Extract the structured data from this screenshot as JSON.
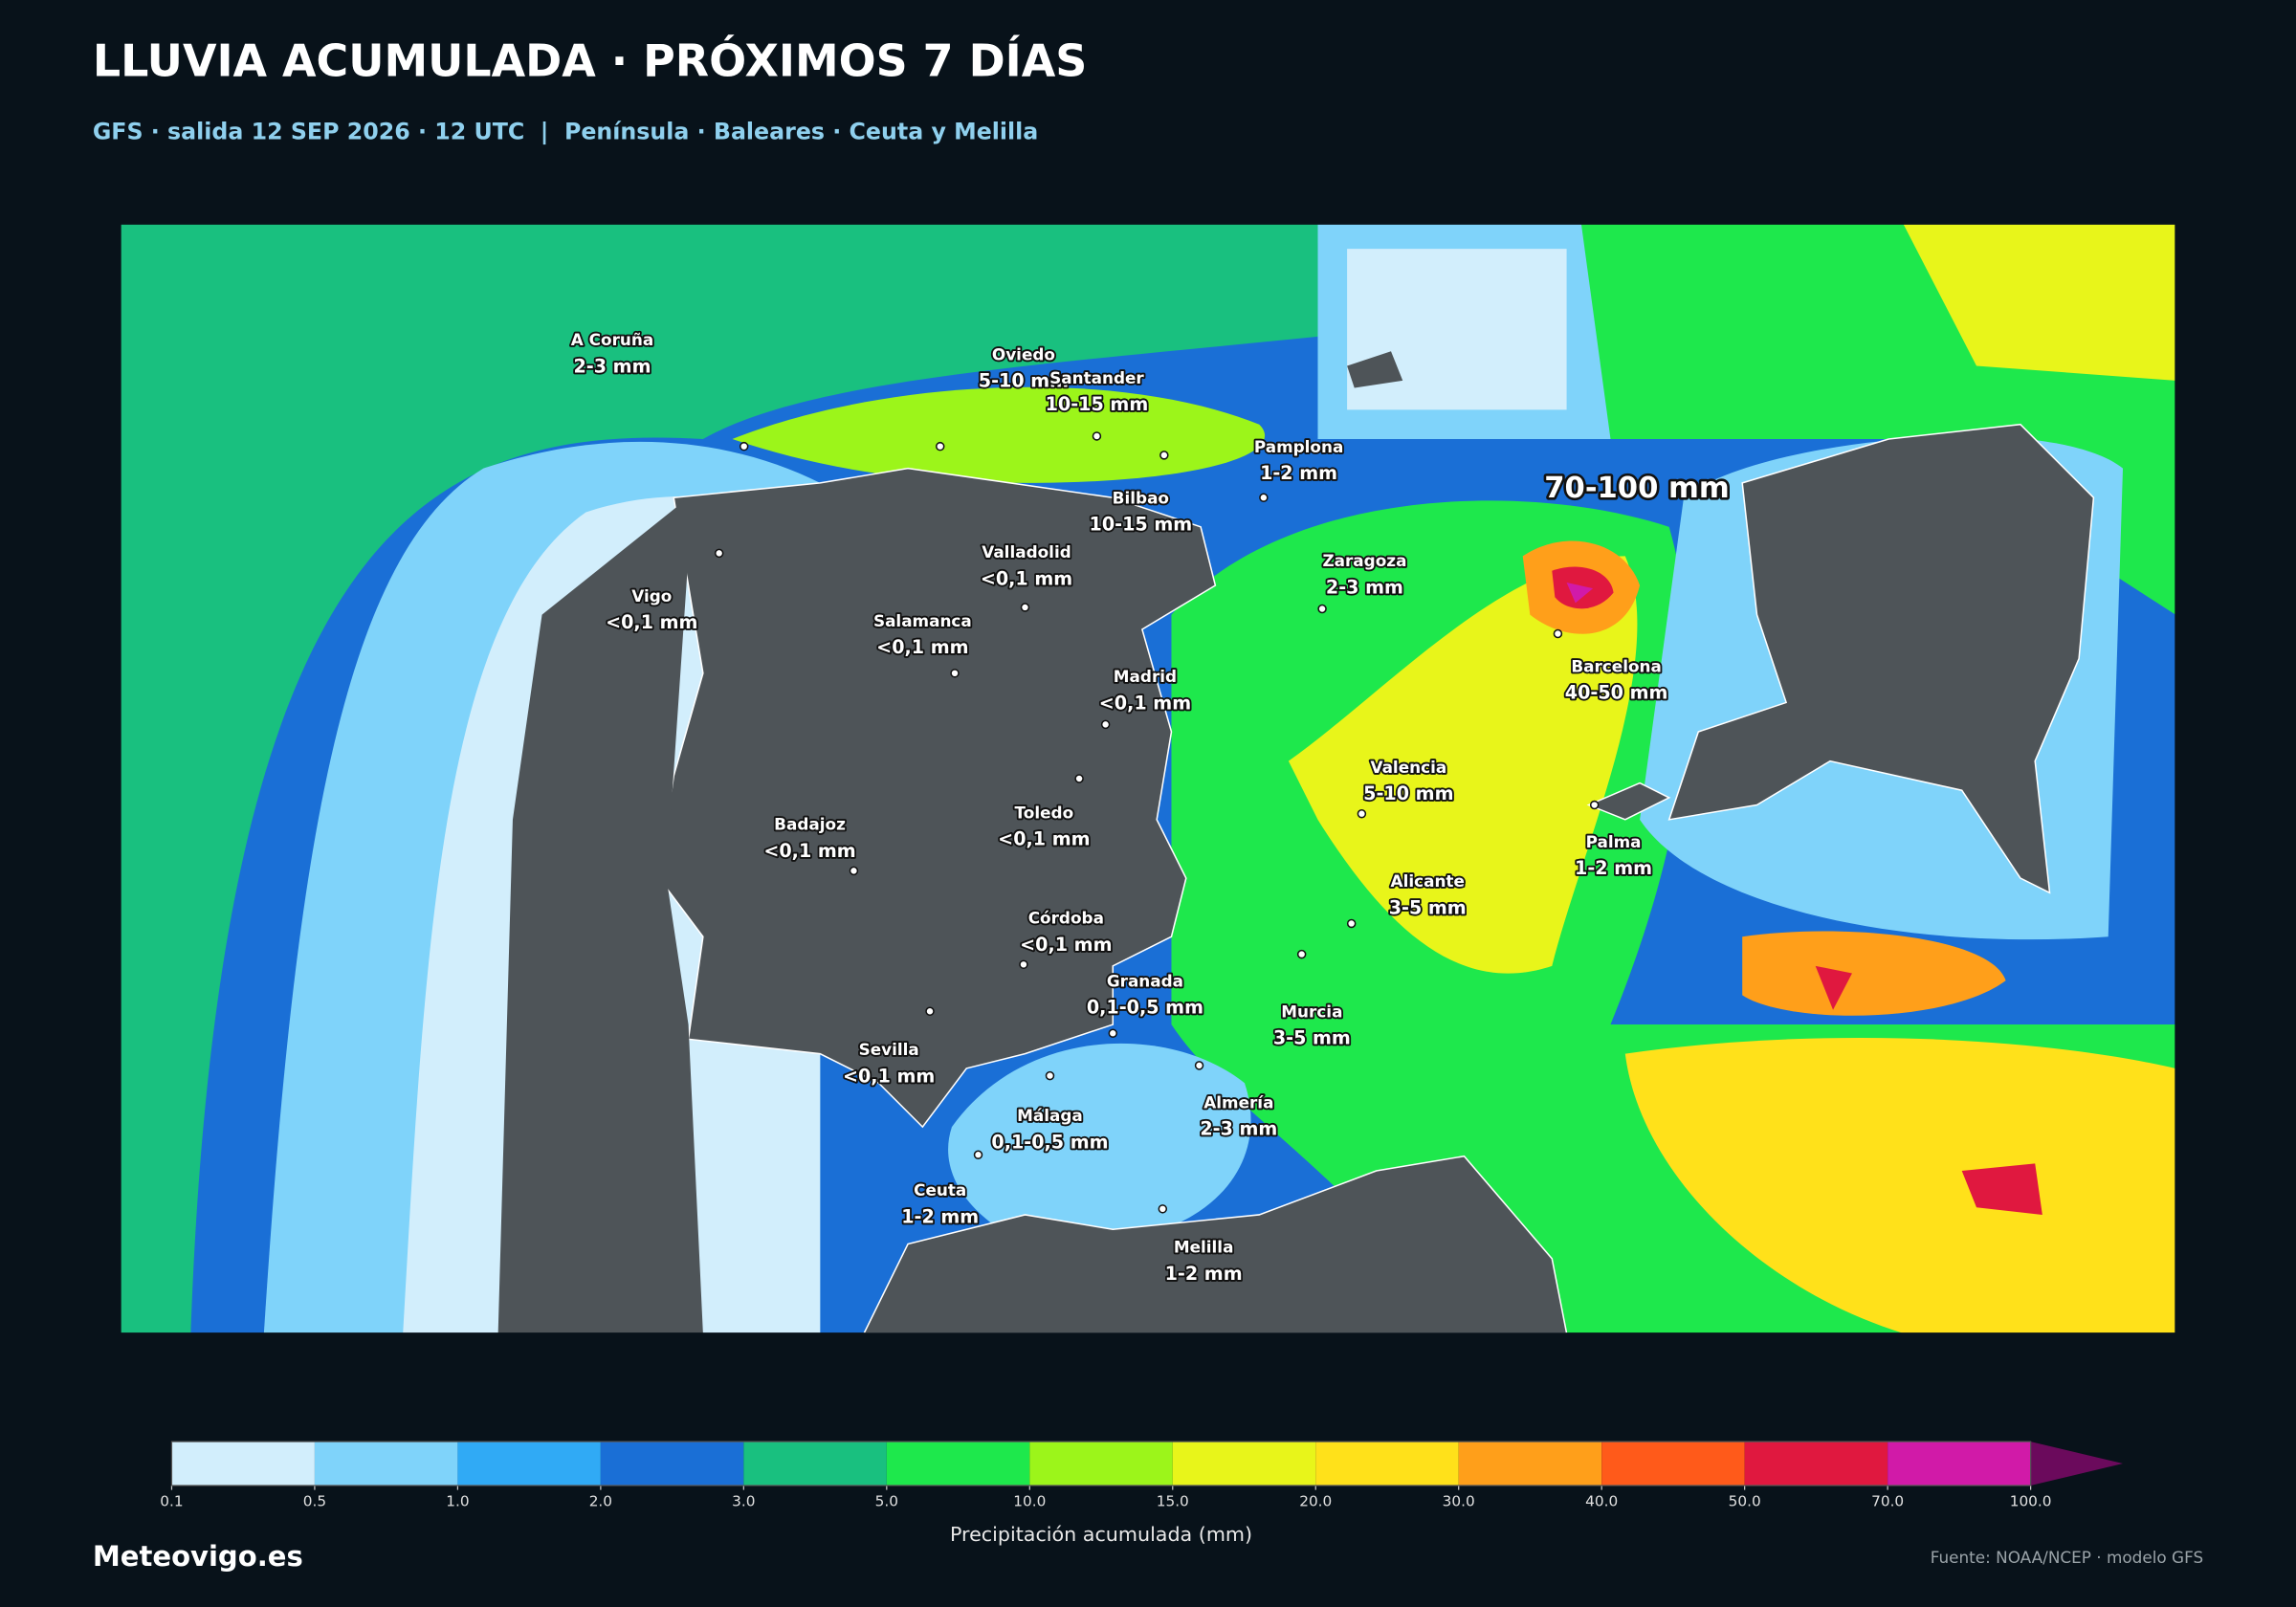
{
  "header": {
    "title": "LLUVIA ACUMULADA · PRÓXIMOS 7 DÍAS",
    "subtitle": "GFS · salida 12 SEP 2026 · 12 UTC  |  Península · Baleares · Ceuta y Melilla"
  },
  "map": {
    "annotation": "70-100 mm",
    "cities": [
      {
        "name": "A Coruña",
        "amount": "2-3 mm"
      },
      {
        "name": "Oviedo",
        "amount": "5-10 mm"
      },
      {
        "name": "Santander",
        "amount": "10-15 mm"
      },
      {
        "name": "Pamplona",
        "amount": "1-2 mm"
      },
      {
        "name": "Bilbao",
        "amount": "10-15 mm"
      },
      {
        "name": "Valladolid",
        "amount": "<0,1 mm"
      },
      {
        "name": "Vigo",
        "amount": "<0,1 mm"
      },
      {
        "name": "Salamanca",
        "amount": "<0,1 mm"
      },
      {
        "name": "Zaragoza",
        "amount": "2-3 mm"
      },
      {
        "name": "Madrid",
        "amount": "<0,1 mm"
      },
      {
        "name": "Barcelona",
        "amount": "40-50 mm"
      },
      {
        "name": "Valencia",
        "amount": "5-10 mm"
      },
      {
        "name": "Badajoz",
        "amount": "<0,1 mm"
      },
      {
        "name": "Toledo",
        "amount": "<0,1 mm"
      },
      {
        "name": "Palma",
        "amount": "1-2 mm"
      },
      {
        "name": "Alicante",
        "amount": "3-5 mm"
      },
      {
        "name": "Córdoba",
        "amount": "<0,1 mm"
      },
      {
        "name": "Granada",
        "amount": "0,1-0,5 mm"
      },
      {
        "name": "Murcia",
        "amount": "3-5 mm"
      },
      {
        "name": "Sevilla",
        "amount": "<0,1 mm"
      },
      {
        "name": "Almería",
        "amount": "2-3 mm"
      },
      {
        "name": "Málaga",
        "amount": "0,1-0,5 mm"
      },
      {
        "name": "Ceuta",
        "amount": "1-2 mm"
      },
      {
        "name": "Melilla",
        "amount": "1-2 mm"
      }
    ]
  },
  "legend": {
    "label": "Precipitación acumulada (mm)",
    "bounds": [
      {
        "value": 0.1,
        "label": "0.1"
      },
      {
        "value": 0.5,
        "label": "0.5"
      },
      {
        "value": 1,
        "label": "1.0"
      },
      {
        "value": 2,
        "label": "2.0"
      },
      {
        "value": 3,
        "label": "3.0"
      },
      {
        "value": 5,
        "label": "5.0"
      },
      {
        "value": 10,
        "label": "10.0"
      },
      {
        "value": 15,
        "label": "15.0"
      },
      {
        "value": 20,
        "label": "20.0"
      },
      {
        "value": 30,
        "label": "30.0"
      },
      {
        "value": 40,
        "label": "40.0"
      },
      {
        "value": 50,
        "label": "50.0"
      },
      {
        "value": 70,
        "label": "70.0"
      },
      {
        "value": 100,
        "label": "100.0"
      }
    ],
    "colors": [
      "#d2eefc",
      "#7fd3fa",
      "#30aaf5",
      "#1a6fd6",
      "#19c07f",
      "#1ee84c",
      "#9cf51a",
      "#e8f51a",
      "#ffe11a",
      "#ff9f1a",
      "#ff5a1a",
      "#e0183f",
      "#d11aa8",
      "#6b0a5c"
    ]
  },
  "footer": {
    "brand": "Meteovigo.es",
    "source": "Fuente: NOAA/NCEP · modelo GFS"
  }
}
